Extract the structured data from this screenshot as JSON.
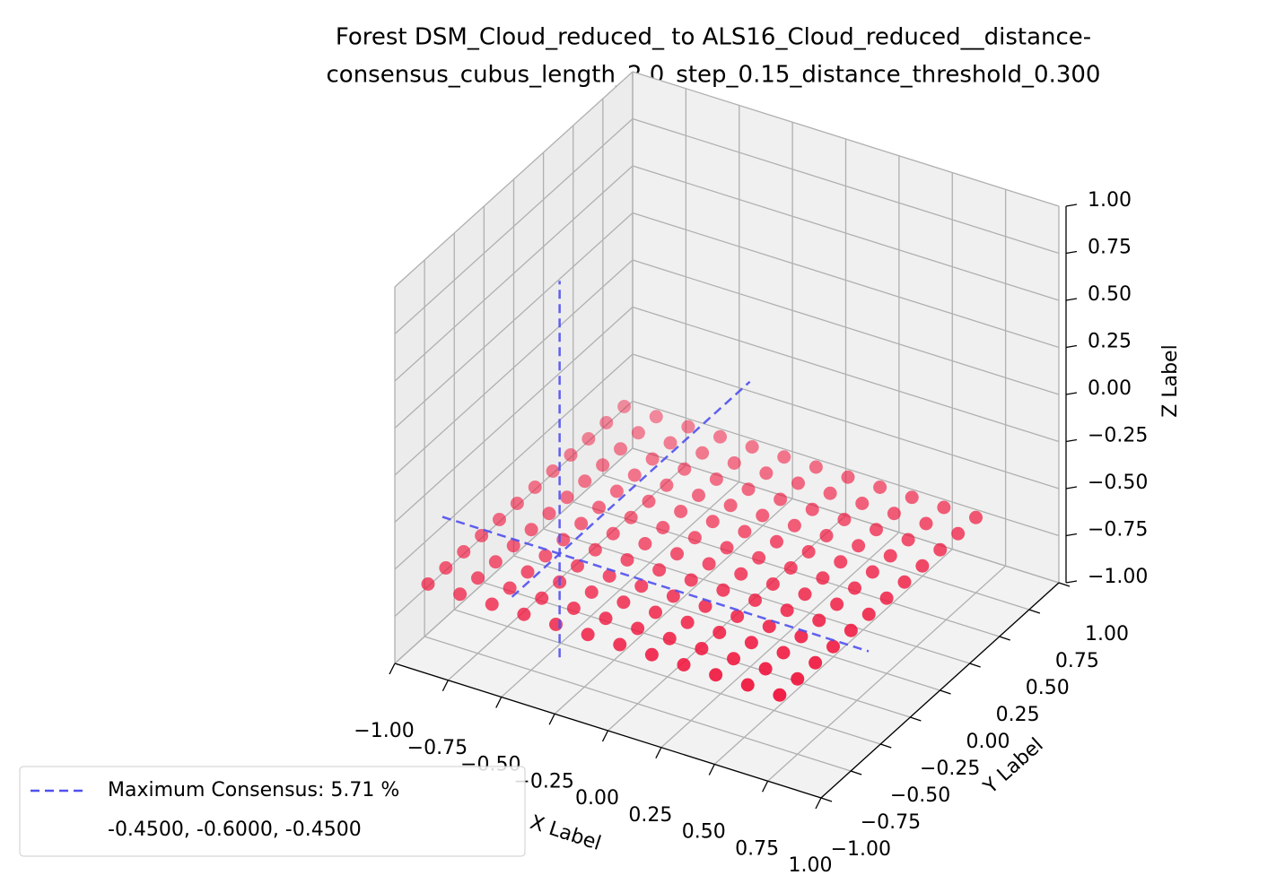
{
  "chart_data": {
    "type": "scatter3d",
    "title": [
      "Forest DSM_Cloud_reduced_ to ALS16_Cloud_reduced__distance-",
      "consensus_cubus_length_2.0_step_0.15_distance_threshold_0.300"
    ],
    "xlabel": "X Label",
    "ylabel": "Y Label",
    "zlabel": "Z Label",
    "xlim": [
      -1,
      1
    ],
    "ylim": [
      -1,
      1
    ],
    "zlim": [
      -1,
      1
    ],
    "xticks": [
      {
        "value": -1,
        "label": "−1.00"
      },
      {
        "value": -0.75,
        "label": "−0.75"
      },
      {
        "value": -0.5,
        "label": "−0.50"
      },
      {
        "value": -0.25,
        "label": "−0.25"
      },
      {
        "value": 0,
        "label": "0.00"
      },
      {
        "value": 0.25,
        "label": "0.25"
      },
      {
        "value": 0.5,
        "label": "0.50"
      },
      {
        "value": 0.75,
        "label": "0.75"
      },
      {
        "value": 1,
        "label": "1.00"
      }
    ],
    "yticks": [
      {
        "value": -1,
        "label": "−1.00"
      },
      {
        "value": -0.75,
        "label": "−0.75"
      },
      {
        "value": -0.5,
        "label": "−0.50"
      },
      {
        "value": -0.25,
        "label": "−0.25"
      },
      {
        "value": 0,
        "label": "0.00"
      },
      {
        "value": 0.25,
        "label": "0.25"
      },
      {
        "value": 0.5,
        "label": "0.50"
      },
      {
        "value": 0.75,
        "label": "0.75"
      },
      {
        "value": 1,
        "label": "1.00"
      }
    ],
    "zticks": [
      {
        "value": -1,
        "label": "−1.00"
      },
      {
        "value": -0.75,
        "label": "−0.75"
      },
      {
        "value": -0.5,
        "label": "−0.50"
      },
      {
        "value": -0.25,
        "label": "−0.25"
      },
      {
        "value": 0,
        "label": "0.00"
      },
      {
        "value": 0.25,
        "label": "0.25"
      },
      {
        "value": 0.5,
        "label": "0.50"
      },
      {
        "value": 0.75,
        "label": "0.75"
      },
      {
        "value": 1,
        "label": "1.00"
      }
    ],
    "grid": true,
    "color": "#f0143c",
    "x": [
      -0.9,
      -0.9,
      -0.9,
      -0.9,
      -0.9,
      -0.9,
      -0.9,
      -0.9,
      -0.9,
      -0.9,
      -0.9,
      -0.9,
      -0.75,
      -0.75,
      -0.75,
      -0.75,
      -0.75,
      -0.75,
      -0.75,
      -0.75,
      -0.75,
      -0.75,
      -0.75,
      -0.75,
      -0.6,
      -0.6,
      -0.6,
      -0.6,
      -0.6,
      -0.6,
      -0.6,
      -0.6,
      -0.6,
      -0.6,
      -0.6,
      -0.6,
      -0.45,
      -0.45,
      -0.45,
      -0.45,
      -0.45,
      -0.45,
      -0.45,
      -0.45,
      -0.45,
      -0.45,
      -0.45,
      -0.45,
      -0.3,
      -0.3,
      -0.3,
      -0.3,
      -0.3,
      -0.3,
      -0.3,
      -0.3,
      -0.3,
      -0.3,
      -0.3,
      -0.3,
      -0.15,
      -0.15,
      -0.15,
      -0.15,
      -0.15,
      -0.15,
      -0.15,
      -0.15,
      -0.15,
      -0.15,
      -0.15,
      -0.15,
      0,
      0,
      0,
      0,
      0,
      0,
      0,
      0,
      0,
      0,
      0,
      0,
      0.15,
      0.15,
      0.15,
      0.15,
      0.15,
      0.15,
      0.15,
      0.15,
      0.15,
      0.15,
      0.15,
      0.15,
      0.3,
      0.3,
      0.3,
      0.3,
      0.3,
      0.3,
      0.3,
      0.3,
      0.3,
      0.3,
      0.3,
      0.3,
      0.45,
      0.45,
      0.45,
      0.45,
      0.45,
      0.45,
      0.45,
      0.45,
      0.45,
      0.45,
      0.45,
      0.45,
      0.6,
      0.6,
      0.6,
      0.6,
      0.6,
      0.6,
      0.6,
      0.6,
      0.6,
      0.6,
      0.6,
      0.6,
      0.75,
      0.75,
      0.75,
      0.75,
      0.75,
      0.75,
      0.75,
      0.75,
      0.75,
      0.75,
      0.75,
      0.75
    ],
    "y": [
      -0.9,
      -0.75,
      -0.6,
      -0.45,
      -0.3,
      -0.15,
      0,
      0.15,
      0.3,
      0.45,
      0.6,
      0.75,
      -0.9,
      -0.75,
      -0.6,
      -0.45,
      -0.3,
      -0.15,
      0,
      0.15,
      0.3,
      0.45,
      0.6,
      0.75,
      -0.9,
      -0.75,
      -0.6,
      -0.45,
      -0.3,
      -0.15,
      0,
      0.15,
      0.3,
      0.45,
      0.6,
      0.75,
      -0.9,
      -0.75,
      -0.6,
      -0.45,
      -0.3,
      -0.15,
      0,
      0.15,
      0.3,
      0.45,
      0.6,
      0.75,
      -0.9,
      -0.75,
      -0.6,
      -0.45,
      -0.3,
      -0.15,
      0,
      0.15,
      0.3,
      0.45,
      0.6,
      0.75,
      -0.9,
      -0.75,
      -0.6,
      -0.45,
      -0.3,
      -0.15,
      0,
      0.15,
      0.3,
      0.45,
      0.6,
      0.75,
      -0.9,
      -0.75,
      -0.6,
      -0.45,
      -0.3,
      -0.15,
      0,
      0.15,
      0.3,
      0.45,
      0.6,
      0.75,
      -0.9,
      -0.75,
      -0.6,
      -0.45,
      -0.3,
      -0.15,
      0,
      0.15,
      0.3,
      0.45,
      0.6,
      0.75,
      -0.9,
      -0.75,
      -0.6,
      -0.45,
      -0.3,
      -0.15,
      0,
      0.15,
      0.3,
      0.45,
      0.6,
      0.75,
      -0.9,
      -0.75,
      -0.6,
      -0.45,
      -0.3,
      -0.15,
      0,
      0.15,
      0.3,
      0.45,
      0.6,
      0.75,
      -0.9,
      -0.75,
      -0.6,
      -0.45,
      -0.3,
      -0.15,
      0,
      0.15,
      0.3,
      0.45,
      0.6,
      0.75,
      -0.9,
      -0.75,
      -0.6,
      -0.45,
      -0.3,
      -0.15,
      0,
      0.15,
      0.3,
      0.45,
      0.6,
      0.75
    ],
    "z": [
      -0.6,
      -0.6,
      -0.6,
      -0.6,
      -0.6,
      -0.6,
      -0.6,
      -0.6,
      -0.6,
      -0.6,
      -0.6,
      -0.6,
      -0.6,
      -0.6,
      -0.6,
      -0.6,
      -0.6,
      -0.6,
      -0.6,
      -0.6,
      -0.6,
      -0.6,
      -0.6,
      -0.6,
      -0.6,
      -0.6,
      -0.6,
      -0.6,
      -0.6,
      -0.6,
      -0.6,
      -0.6,
      -0.6,
      -0.6,
      -0.6,
      -0.6,
      -0.6,
      -0.6,
      -0.6,
      -0.6,
      -0.6,
      -0.6,
      -0.6,
      -0.6,
      -0.6,
      -0.6,
      -0.6,
      -0.6,
      -0.6,
      -0.6,
      -0.6,
      -0.6,
      -0.6,
      -0.6,
      -0.6,
      -0.6,
      -0.6,
      -0.6,
      -0.6,
      -0.6,
      -0.6,
      -0.6,
      -0.6,
      -0.6,
      -0.6,
      -0.6,
      -0.6,
      -0.6,
      -0.6,
      -0.6,
      -0.6,
      -0.6,
      -0.6,
      -0.6,
      -0.6,
      -0.6,
      -0.6,
      -0.6,
      -0.6,
      -0.6,
      -0.6,
      -0.6,
      -0.6,
      -0.6,
      -0.6,
      -0.6,
      -0.6,
      -0.6,
      -0.6,
      -0.6,
      -0.6,
      -0.6,
      -0.6,
      -0.6,
      -0.6,
      -0.6,
      -0.6,
      -0.6,
      -0.6,
      -0.6,
      -0.6,
      -0.6,
      -0.6,
      -0.6,
      -0.6,
      -0.6,
      -0.6,
      -0.6,
      -0.6,
      -0.6,
      -0.6,
      -0.6,
      -0.6,
      -0.6,
      -0.6,
      -0.6,
      -0.6,
      -0.6,
      -0.6,
      -0.6,
      -0.6,
      -0.6,
      -0.6,
      -0.6,
      -0.6,
      -0.6,
      -0.6,
      -0.6,
      -0.6,
      -0.6,
      -0.6,
      -0.6,
      -0.6,
      -0.6,
      -0.6,
      -0.6,
      -0.6,
      -0.6,
      -0.6,
      -0.6,
      -0.6,
      -0.6,
      -0.6,
      -0.6
    ],
    "consensus": {
      "name": [
        "Maximum Consensus: 5.71 %",
        "-0.4500, -0.6000, -0.4500"
      ],
      "color": "#5050f0",
      "point": [
        -0.45,
        -0.6,
        -0.45
      ]
    }
  }
}
